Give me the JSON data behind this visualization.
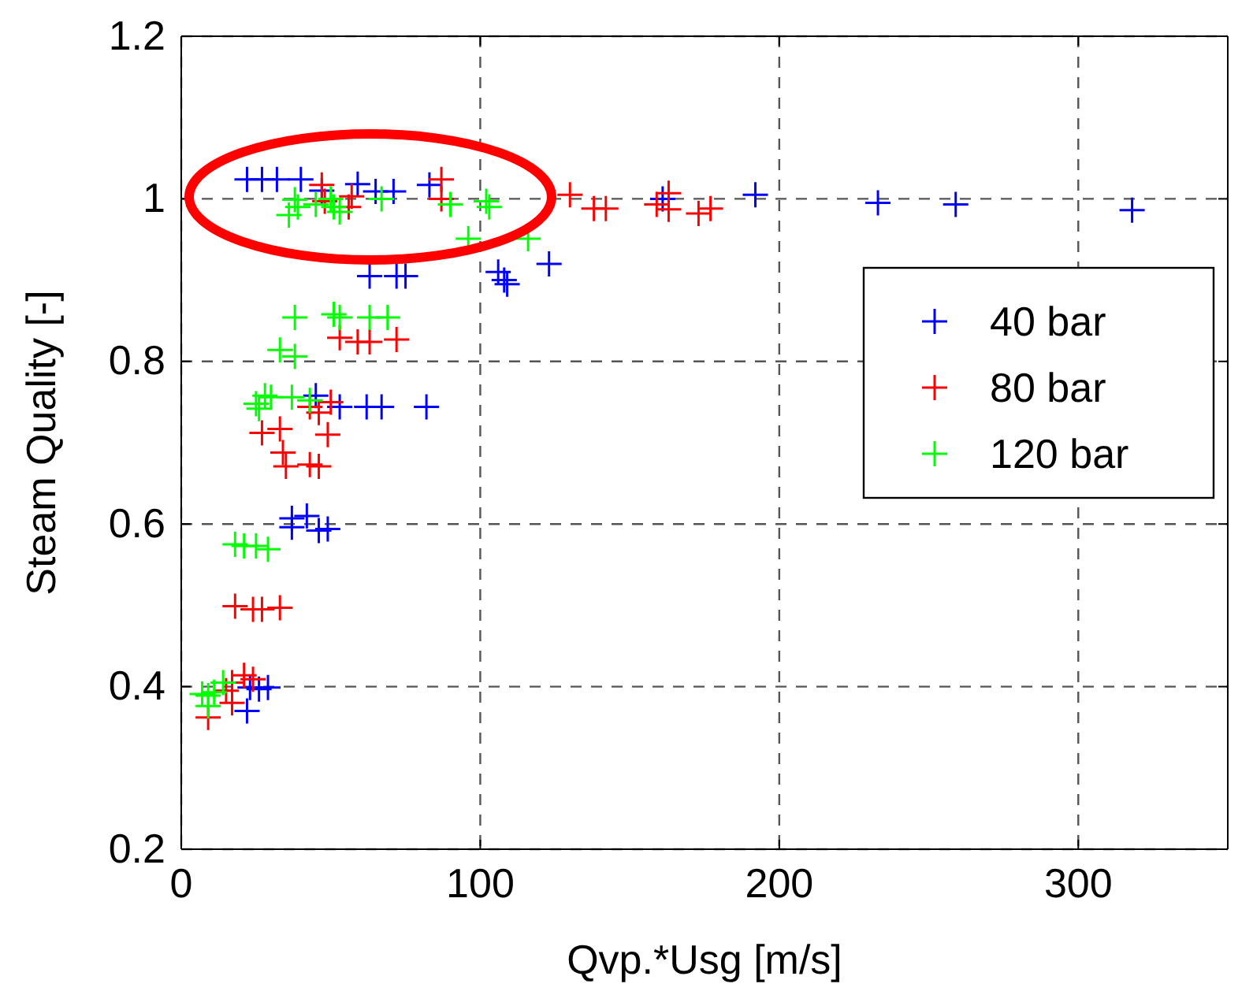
{
  "chart_data": {
    "type": "scatter",
    "xlabel": "Qvp.*Usg [m/s]",
    "ylabel": "Steam Quality [-]",
    "xlim": [
      0,
      350
    ],
    "xticks": [
      0,
      100,
      200,
      300
    ],
    "ylim": [
      0.2,
      1.2
    ],
    "yticks": [
      0.2,
      0.4,
      0.6,
      0.8,
      1,
      1.2
    ],
    "grid": true,
    "legend": "right",
    "marker": "cross",
    "series": [
      {
        "name": "40 bar",
        "color": "#0000ff",
        "x": [
          22,
          27,
          32,
          40,
          47,
          59,
          65,
          71,
          83,
          63,
          72,
          75,
          106,
          108,
          109,
          123,
          161,
          192,
          233,
          259,
          318,
          53,
          62,
          67,
          82,
          45,
          37,
          42,
          37,
          46,
          49,
          23,
          26,
          22,
          29
        ],
        "values": [
          1.024,
          1.024,
          1.024,
          1.024,
          1.01,
          1.018,
          1.009,
          1.009,
          1.017,
          0.905,
          0.905,
          0.905,
          0.91,
          0.9,
          0.895,
          0.92,
          1.0,
          1.005,
          0.995,
          0.993,
          0.986,
          0.744,
          0.744,
          0.744,
          0.744,
          0.758,
          0.607,
          0.61,
          0.596,
          0.592,
          0.594,
          0.399,
          0.397,
          0.37,
          0.399
        ]
      },
      {
        "name": "80 bar",
        "color": "#ff0000",
        "x": [
          47,
          48,
          57,
          56,
          87,
          87,
          130,
          138,
          142,
          159,
          163,
          163,
          173,
          177,
          53,
          59,
          63,
          72,
          50,
          43,
          46,
          27,
          33,
          49,
          34,
          35,
          43,
          46,
          18,
          24,
          27,
          33,
          21,
          17,
          15,
          17,
          9,
          24
        ],
        "values": [
          1.017,
          0.997,
          1.003,
          0.99,
          1.024,
          1.0,
          1.005,
          0.988,
          0.988,
          0.993,
          1.007,
          0.987,
          0.982,
          0.988,
          0.829,
          0.824,
          0.824,
          0.827,
          0.75,
          0.744,
          0.737,
          0.712,
          0.717,
          0.71,
          0.688,
          0.671,
          0.673,
          0.671,
          0.499,
          0.495,
          0.495,
          0.497,
          0.414,
          0.405,
          0.395,
          0.38,
          0.362,
          0.409
        ]
      },
      {
        "name": "120 bar",
        "color": "#00ff00",
        "x": [
          38,
          39,
          36,
          45,
          50,
          51,
          53,
          67,
          90,
          102,
          103,
          96,
          116,
          38,
          51,
          53,
          63,
          69,
          33,
          38,
          28,
          30,
          25,
          37,
          43,
          26,
          18,
          21,
          25,
          29,
          7,
          9,
          11,
          9,
          14
        ],
        "values": [
          0.999,
          0.99,
          0.98,
          0.993,
          1.0,
          0.99,
          0.984,
          1.0,
          0.993,
          0.997,
          0.99,
          0.951,
          0.951,
          0.854,
          0.858,
          0.854,
          0.854,
          0.854,
          0.814,
          0.806,
          0.758,
          0.756,
          0.748,
          0.756,
          0.752,
          0.742,
          0.575,
          0.573,
          0.573,
          0.569,
          0.391,
          0.389,
          0.393,
          0.376,
          0.405
        ]
      }
    ]
  }
}
